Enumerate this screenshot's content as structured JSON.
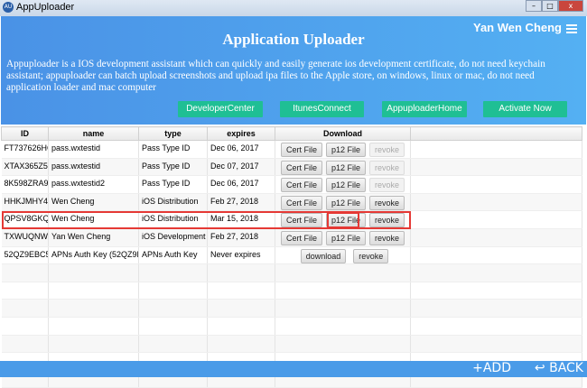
{
  "window": {
    "title": "AppUploader",
    "minimize": "–",
    "maximize": "□",
    "close": "x"
  },
  "header": {
    "user": "Yan Wen Cheng",
    "title": "Application Uploader",
    "description": "Appuploader is a IOS development assistant which can quickly and easily generate ios development certificate, do not need keychain assistant; appuploader can batch upload screenshots and upload ipa files to the Apple store, on windows, linux or mac, do not need application loader and mac computer",
    "buttons": [
      "DeveloperCenter",
      "ItunesConnect",
      "AppuploaderHome",
      "Activate Now"
    ],
    "accent": "#1fbf94"
  },
  "table": {
    "columns": [
      "ID",
      "name",
      "type",
      "expires",
      "Download"
    ],
    "rows": [
      {
        "id": "FT737626HC",
        "name": "pass.wxtestid",
        "type": "Pass Type ID",
        "expires": "Dec 06, 2017",
        "actions": [
          "Cert File",
          "p12 File",
          "revoke"
        ],
        "revoke_enabled": false
      },
      {
        "id": "XTAX365Z55",
        "name": "pass.wxtestid",
        "type": "Pass Type ID",
        "expires": "Dec 07, 2017",
        "actions": [
          "Cert File",
          "p12 File",
          "revoke"
        ],
        "revoke_enabled": false
      },
      {
        "id": "8K598ZRA95",
        "name": "pass.wxtestid2",
        "type": "Pass Type ID",
        "expires": "Dec 06, 2017",
        "actions": [
          "Cert File",
          "p12 File",
          "revoke"
        ],
        "revoke_enabled": false
      },
      {
        "id": "HHKJMHY472",
        "name": "Wen Cheng",
        "type": "iOS Distribution",
        "expires": "Feb 27, 2018",
        "actions": [
          "Cert File",
          "p12 File",
          "revoke"
        ],
        "revoke_enabled": true
      },
      {
        "id": "QPSV8GKQUW",
        "name": "Wen Cheng",
        "type": "iOS Distribution",
        "expires": "Mar 15, 2018",
        "actions": [
          "Cert File",
          "p12 File",
          "revoke"
        ],
        "revoke_enabled": true
      },
      {
        "id": "TXWUQNW3PY",
        "name": "Yan Wen Cheng",
        "type": "iOS Development",
        "expires": "Feb 27, 2018",
        "actions": [
          "Cert File",
          "p12 File",
          "revoke"
        ],
        "revoke_enabled": true
      },
      {
        "id": "52QZ9EBC5Z",
        "name": "APNs Auth Key (52QZ9EBC5Z)",
        "type": "APNs Auth Key",
        "expires": "Never expires",
        "actions": [
          "download",
          "revoke"
        ],
        "revoke_enabled": true
      }
    ],
    "highlight_color": "#e53935"
  },
  "footer": {
    "add": "ADD",
    "back": "BACK"
  }
}
